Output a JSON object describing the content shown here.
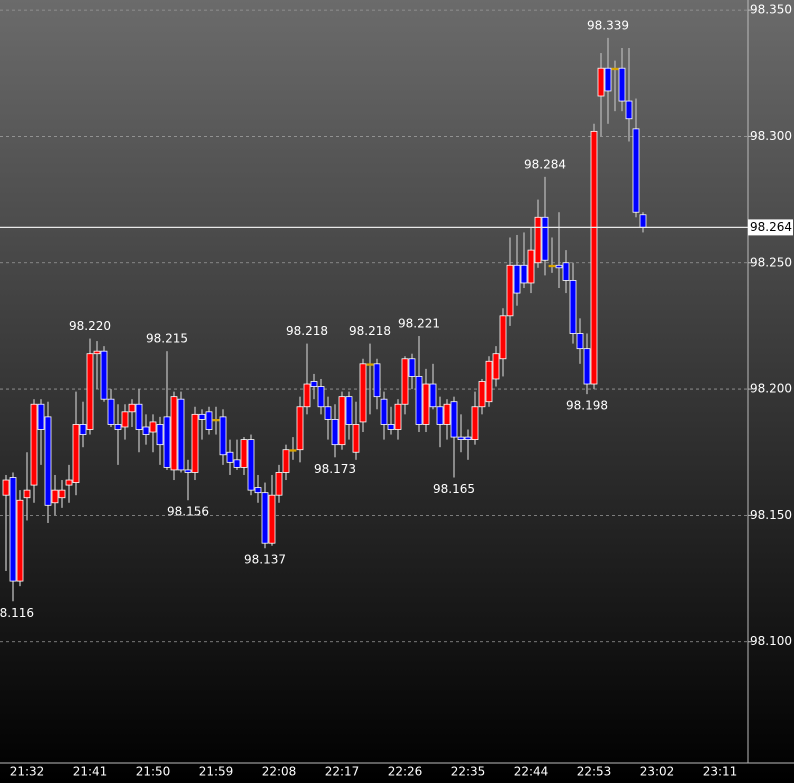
{
  "chart_data": {
    "type": "candlestick",
    "categories": [
      null,
      null,
      null,
      "21:32",
      null,
      null,
      null,
      null,
      null,
      null,
      null,
      null,
      "21:41",
      null,
      null,
      null,
      null,
      null,
      null,
      null,
      null,
      "21:50",
      null,
      null,
      null,
      null,
      null,
      null,
      null,
      null,
      "21:59",
      null,
      null,
      null,
      null,
      null,
      null,
      null,
      null,
      "22:08",
      null,
      null,
      null,
      null,
      null,
      null,
      null,
      null,
      "22:17",
      null,
      null,
      null,
      null,
      null,
      null,
      null,
      null,
      "22:26",
      null,
      null,
      null,
      null,
      null,
      null,
      null,
      null,
      "22:35",
      null,
      null,
      null,
      null,
      null,
      null,
      null,
      null,
      "22:44",
      null,
      null,
      null,
      null,
      null,
      null,
      null,
      null,
      "22:53",
      null,
      null,
      null,
      null,
      null,
      null,
      null,
      null,
      "23:02",
      null,
      null,
      null,
      null,
      null,
      null,
      null,
      null,
      "23:11"
    ],
    "open": [
      98.158,
      98.165,
      98.124,
      98.157,
      98.162,
      98.194,
      98.189,
      98.155,
      98.157,
      98.162,
      98.163,
      98.186,
      98.184,
      98.214,
      98.215,
      98.196,
      98.186,
      98.185,
      98.191,
      98.194,
      98.185,
      98.183,
      98.186,
      98.189,
      98.168,
      98.196,
      98.168,
      98.167,
      98.19,
      98.191,
      98.188,
      98.189,
      98.175,
      98.172,
      98.169,
      98.18,
      98.161,
      98.159,
      98.139,
      98.158,
      98.167,
      98.176,
      98.176,
      98.193,
      98.203,
      98.201,
      98.193,
      98.188,
      98.178,
      98.197,
      98.175,
      98.187,
      98.21,
      98.21,
      98.196,
      98.186,
      98.184,
      98.194,
      98.212,
      98.205,
      98.186,
      98.202,
      98.193,
      98.186,
      98.195,
      98.181,
      98.181,
      98.18,
      98.193,
      98.195,
      98.204,
      98.212,
      98.229,
      98.249,
      98.249,
      98.242,
      98.25,
      98.268,
      98.249,
      98.249,
      98.25,
      98.243,
      98.222,
      98.216,
      98.202,
      98.316,
      98.327,
      98.327,
      98.327,
      98.314,
      98.303,
      98.269,
      null,
      null,
      null,
      null,
      null,
      null,
      null,
      null,
      null,
      null,
      null
    ],
    "high": [
      98.166,
      98.167,
      98.16,
      98.175,
      98.196,
      98.196,
      98.195,
      98.166,
      98.164,
      98.17,
      98.199,
      98.195,
      98.22,
      98.219,
      98.217,
      98.2,
      98.194,
      98.194,
      98.196,
      98.2,
      98.19,
      98.19,
      98.189,
      98.215,
      98.199,
      98.199,
      98.172,
      98.193,
      98.192,
      98.193,
      98.193,
      98.192,
      98.18,
      98.18,
      98.181,
      98.182,
      98.166,
      98.163,
      98.166,
      98.17,
      98.178,
      98.181,
      98.197,
      98.218,
      98.206,
      98.204,
      98.197,
      98.194,
      98.199,
      98.199,
      98.195,
      98.212,
      98.218,
      98.212,
      98.199,
      98.193,
      98.196,
      98.213,
      98.214,
      98.221,
      98.208,
      98.21,
      98.197,
      98.196,
      98.197,
      98.19,
      98.184,
      98.199,
      98.204,
      98.213,
      98.217,
      98.232,
      98.26,
      98.261,
      98.262,
      98.264,
      98.275,
      98.284,
      98.26,
      98.27,
      98.255,
      98.25,
      98.228,
      98.222,
      98.305,
      98.333,
      98.339,
      98.33,
      98.335,
      98.335,
      98.315,
      98.27,
      null,
      null,
      null,
      null,
      null,
      null,
      null,
      null,
      null,
      null,
      null
    ],
    "low": [
      98.128,
      98.116,
      98.122,
      98.148,
      98.155,
      98.17,
      98.147,
      98.15,
      98.153,
      98.155,
      98.158,
      98.177,
      98.182,
      98.2,
      98.195,
      98.185,
      98.17,
      98.18,
      98.185,
      98.175,
      98.178,
      98.175,
      98.17,
      98.168,
      98.164,
      98.167,
      98.156,
      98.164,
      98.18,
      98.182,
      98.182,
      98.17,
      98.166,
      98.168,
      98.166,
      98.158,
      98.155,
      98.137,
      98.138,
      98.155,
      98.164,
      98.172,
      98.171,
      98.19,
      98.196,
      98.19,
      98.18,
      98.173,
      98.176,
      98.18,
      98.172,
      98.183,
      98.19,
      98.192,
      98.18,
      98.182,
      98.18,
      98.19,
      98.2,
      98.183,
      98.183,
      98.192,
      98.177,
      98.18,
      98.165,
      98.175,
      98.172,
      98.178,
      98.19,
      98.193,
      98.201,
      98.205,
      98.225,
      98.233,
      98.24,
      98.238,
      98.248,
      98.245,
      98.246,
      98.24,
      98.238,
      98.218,
      98.21,
      98.198,
      98.2,
      98.3,
      98.305,
      98.31,
      98.31,
      98.298,
      98.268,
      98.262,
      null,
      null,
      null,
      null,
      null,
      null,
      null,
      null,
      null,
      null,
      null
    ],
    "close": [
      98.164,
      98.124,
      98.156,
      98.16,
      98.194,
      98.184,
      98.154,
      98.16,
      98.16,
      98.164,
      98.186,
      98.182,
      98.214,
      98.215,
      98.196,
      98.186,
      98.184,
      98.191,
      98.194,
      98.184,
      98.182,
      98.187,
      98.178,
      98.169,
      98.197,
      98.168,
      98.167,
      98.19,
      98.188,
      98.184,
      98.188,
      98.174,
      98.171,
      98.169,
      98.18,
      98.16,
      98.159,
      98.139,
      98.158,
      98.167,
      98.176,
      98.176,
      98.193,
      98.202,
      98.201,
      98.193,
      98.188,
      98.178,
      98.197,
      98.186,
      98.186,
      98.21,
      98.21,
      98.197,
      98.186,
      98.184,
      98.194,
      98.212,
      98.205,
      98.186,
      98.202,
      98.193,
      98.186,
      98.194,
      98.181,
      98.18,
      98.18,
      98.193,
      98.203,
      98.211,
      98.214,
      98.229,
      98.249,
      98.238,
      98.242,
      98.255,
      98.268,
      98.251,
      98.249,
      98.248,
      98.243,
      98.222,
      98.216,
      98.202,
      98.302,
      98.327,
      98.318,
      98.327,
      98.314,
      98.307,
      98.27,
      98.264,
      null,
      null,
      null,
      null,
      null,
      null,
      null,
      null,
      null,
      null,
      null
    ],
    "colors": {
      "up": "#ff0000",
      "down": "#0000ff",
      "unchanged": "#d9a400",
      "wick": "#a8a8a8"
    },
    "annotations": [
      "98.116",
      "98.220",
      "98.215",
      "98.156",
      "98.137",
      "98.218",
      "98.173",
      "98.218",
      "98.221",
      "98.165",
      "98.284",
      "98.198",
      "98.339"
    ],
    "price_line": 98.264,
    "ylim": [
      98.052,
      98.354
    ],
    "yticks": [
      {
        "value": 98.1,
        "label": "98.100"
      },
      {
        "value": 98.15,
        "label": "98.150"
      },
      {
        "value": 98.2,
        "label": "98.200"
      },
      {
        "value": 98.25,
        "label": "98.250"
      },
      {
        "value": 98.3,
        "label": "98.300"
      },
      {
        "value": 98.35,
        "label": "98.350"
      }
    ],
    "grid": true
  }
}
